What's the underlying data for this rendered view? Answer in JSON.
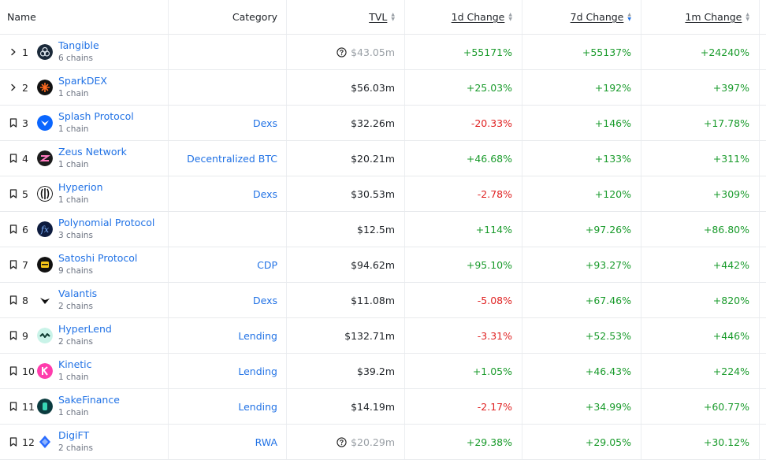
{
  "headers": {
    "name": "Name",
    "category": "Category",
    "tvl": "TVL",
    "change_1d": "1d Change",
    "change_7d": "7d Change",
    "change_1m": "1m Change"
  },
  "colors": {
    "link": "#2172e5",
    "positive": "#1a9b2c",
    "negative": "#e02424"
  },
  "rows": [
    {
      "lead_icon": "chevron-right-icon",
      "rank": "1",
      "name": "Tangible",
      "chains": "6 chains",
      "logo": "tangible-logo",
      "category": "",
      "tvl": "$43.05m",
      "tvl_unverified": true,
      "d1": "+55171%",
      "d7": "+55137%",
      "m1": "+24240%"
    },
    {
      "lead_icon": "chevron-right-icon",
      "rank": "2",
      "name": "SparkDEX",
      "chains": "1 chain",
      "logo": "sparkdex-logo",
      "category": "",
      "tvl": "$56.03m",
      "tvl_unverified": false,
      "d1": "+25.03%",
      "d7": "+192%",
      "m1": "+397%"
    },
    {
      "lead_icon": "bookmark-icon",
      "rank": "3",
      "name": "Splash Protocol",
      "chains": "1 chain",
      "logo": "splash-logo",
      "category": "Dexs",
      "tvl": "$32.26m",
      "tvl_unverified": false,
      "d1": "-20.33%",
      "d7": "+146%",
      "m1": "+17.78%"
    },
    {
      "lead_icon": "bookmark-icon",
      "rank": "4",
      "name": "Zeus Network",
      "chains": "1 chain",
      "logo": "zeus-logo",
      "category": "Decentralized BTC",
      "tvl": "$20.21m",
      "tvl_unverified": false,
      "d1": "+46.68%",
      "d7": "+133%",
      "m1": "+311%"
    },
    {
      "lead_icon": "bookmark-icon",
      "rank": "5",
      "name": "Hyperion",
      "chains": "1 chain",
      "logo": "hyperion-logo",
      "category": "Dexs",
      "tvl": "$30.53m",
      "tvl_unverified": false,
      "d1": "-2.78%",
      "d7": "+120%",
      "m1": "+309%"
    },
    {
      "lead_icon": "bookmark-icon",
      "rank": "6",
      "name": "Polynomial Protocol",
      "chains": "3 chains",
      "logo": "polynomial-logo",
      "category": "",
      "tvl": "$12.5m",
      "tvl_unverified": false,
      "d1": "+114%",
      "d7": "+97.26%",
      "m1": "+86.80%"
    },
    {
      "lead_icon": "bookmark-icon",
      "rank": "7",
      "name": "Satoshi Protocol",
      "chains": "9 chains",
      "logo": "satoshi-logo",
      "category": "CDP",
      "tvl": "$94.62m",
      "tvl_unverified": false,
      "d1": "+95.10%",
      "d7": "+93.27%",
      "m1": "+442%"
    },
    {
      "lead_icon": "bookmark-icon",
      "rank": "8",
      "name": "Valantis",
      "chains": "2 chains",
      "logo": "valantis-logo",
      "category": "Dexs",
      "tvl": "$11.08m",
      "tvl_unverified": false,
      "d1": "-5.08%",
      "d7": "+67.46%",
      "m1": "+820%"
    },
    {
      "lead_icon": "bookmark-icon",
      "rank": "9",
      "name": "HyperLend",
      "chains": "2 chains",
      "logo": "hyperlend-logo",
      "category": "Lending",
      "tvl": "$132.71m",
      "tvl_unverified": false,
      "d1": "-3.31%",
      "d7": "+52.53%",
      "m1": "+446%"
    },
    {
      "lead_icon": "bookmark-icon",
      "rank": "10",
      "name": "Kinetic",
      "chains": "1 chain",
      "logo": "kinetic-logo",
      "category": "Lending",
      "tvl": "$39.2m",
      "tvl_unverified": false,
      "d1": "+1.05%",
      "d7": "+46.43%",
      "m1": "+224%"
    },
    {
      "lead_icon": "bookmark-icon",
      "rank": "11",
      "name": "SakeFinance",
      "chains": "1 chain",
      "logo": "sakefinance-logo",
      "category": "Lending",
      "tvl": "$14.19m",
      "tvl_unverified": false,
      "d1": "-2.17%",
      "d7": "+34.99%",
      "m1": "+60.77%"
    },
    {
      "lead_icon": "bookmark-icon",
      "rank": "12",
      "name": "DigiFT",
      "chains": "2 chains",
      "logo": "digift-logo",
      "category": "RWA",
      "tvl": "$20.29m",
      "tvl_unverified": true,
      "d1": "+29.38%",
      "d7": "+29.05%",
      "m1": "+30.12%"
    }
  ]
}
